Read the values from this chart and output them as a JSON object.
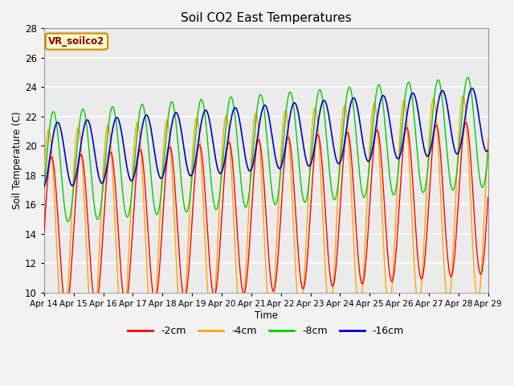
{
  "title": "Soil CO2 East Temperatures",
  "xlabel": "Time",
  "ylabel": "Soil Temperature (C)",
  "ylim": [
    10,
    28
  ],
  "background_color": "#ebebeb",
  "series": {
    "-2cm": {
      "color": "#ff0000"
    },
    "-4cm": {
      "color": "#ffa500"
    },
    "-8cm": {
      "color": "#00cc00"
    },
    "-16cm": {
      "color": "#0000cc"
    }
  },
  "x_tick_labels": [
    "Apr 14",
    "Apr 15",
    "Apr 16",
    "Apr 17",
    "Apr 18",
    "Apr 19",
    "Apr 20",
    "Apr 21",
    "Apr 22",
    "Apr 23",
    "Apr 24",
    "Apr 25",
    "Apr 26",
    "Apr 27",
    "Apr 28",
    "Apr 29"
  ],
  "legend_label": "VR_soilco2"
}
